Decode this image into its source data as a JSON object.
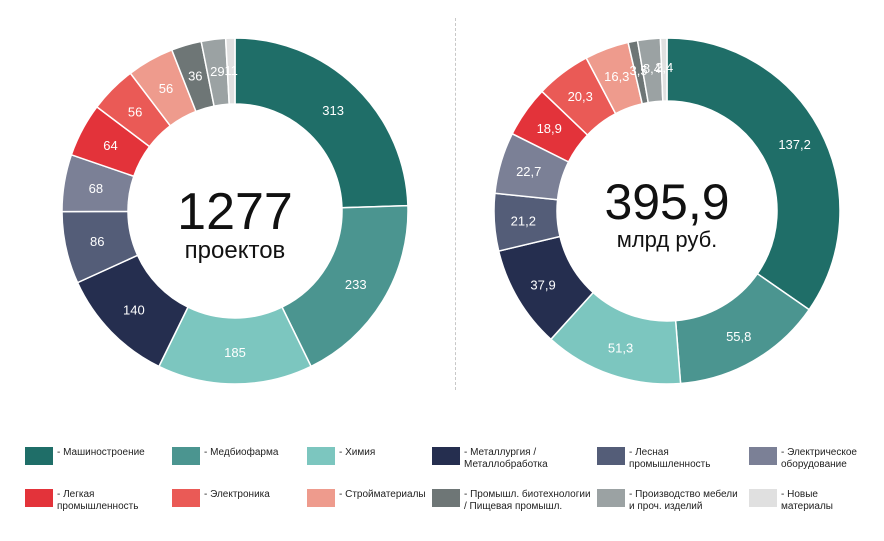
{
  "colors": {
    "Машиностроение": "#1f6e68",
    "Медбиофарма": "#4b9590",
    "Химия": "#7cc6bf",
    "Металлургия": "#252e4f",
    "Лесная": "#545d78",
    "Электрическое": "#7b8096",
    "Легкая": "#e3333a",
    "Электроника": "#ea5a56",
    "Стройматериалы": "#ee9b8d",
    "Биотех": "#6e7676",
    "Мебель": "#9ba2a3",
    "Новые": "#e0e0e0"
  },
  "chart_data": [
    {
      "type": "pie",
      "variant": "donut",
      "center_value": "1277",
      "center_label": "проектов",
      "slices": [
        {
          "key": "Машиностроение",
          "value": 313,
          "label": "313"
        },
        {
          "key": "Медбиофарма",
          "value": 233,
          "label": "233"
        },
        {
          "key": "Химия",
          "value": 185,
          "label": "185"
        },
        {
          "key": "Металлургия",
          "value": 140,
          "label": "140"
        },
        {
          "key": "Лесная",
          "value": 86,
          "label": "86"
        },
        {
          "key": "Электрическое",
          "value": 68,
          "label": "68"
        },
        {
          "key": "Легкая",
          "value": 64,
          "label": "64"
        },
        {
          "key": "Электроника",
          "value": 56,
          "label": "56"
        },
        {
          "key": "Стройматериалы",
          "value": 56,
          "label": "56"
        },
        {
          "key": "Биотех",
          "value": 36,
          "label": "36"
        },
        {
          "key": "Мебель",
          "value": 29,
          "label": "29"
        },
        {
          "key": "Новые",
          "value": 11,
          "label": "11"
        }
      ]
    },
    {
      "type": "pie",
      "variant": "donut",
      "center_value": "395,9",
      "center_label": "млрд руб.",
      "slices": [
        {
          "key": "Машиностроение",
          "value": 137.2,
          "label": "137,2"
        },
        {
          "key": "Медбиофарма",
          "value": 55.8,
          "label": "55,8"
        },
        {
          "key": "Химия",
          "value": 51.3,
          "label": "51,3"
        },
        {
          "key": "Металлургия",
          "value": 37.9,
          "label": "37,9"
        },
        {
          "key": "Лесная",
          "value": 21.2,
          "label": "21,2"
        },
        {
          "key": "Электрическое",
          "value": 22.7,
          "label": "22,7"
        },
        {
          "key": "Легкая",
          "value": 18.9,
          "label": "18,9"
        },
        {
          "key": "Электроника",
          "value": 20.3,
          "label": "20,3"
        },
        {
          "key": "Стройматериалы",
          "value": 16.3,
          "label": "16,3"
        },
        {
          "key": "Биотех",
          "value": 3.5,
          "label": "3,5"
        },
        {
          "key": "Мебель",
          "value": 8.4,
          "label": "8,4"
        },
        {
          "key": "Новые",
          "value": 2.4,
          "label": "2,4"
        }
      ]
    }
  ],
  "legend": [
    {
      "key": "Машиностроение",
      "label": "- Машиностроение"
    },
    {
      "key": "Медбиофарма",
      "label": "- Медбиофарма"
    },
    {
      "key": "Химия",
      "label": "- Химия"
    },
    {
      "key": "Металлургия",
      "label": "- Металлургия /\nМеталлобработка"
    },
    {
      "key": "Лесная",
      "label": "- Лесная\nпромышленность"
    },
    {
      "key": "Электрическое",
      "label": "- Электрическое\nоборудование"
    },
    {
      "key": "Легкая",
      "label": "- Легкая\nпромышленность"
    },
    {
      "key": "Электроника",
      "label": "- Электроника"
    },
    {
      "key": "Стройматериалы",
      "label": "- Стройматериалы"
    },
    {
      "key": "Биотех",
      "label": "- Промышл. биотехнологии\n/ Пищевая промышл."
    },
    {
      "key": "Мебель",
      "label": "- Производство мебели\nи проч. изделий"
    },
    {
      "key": "Новые",
      "label": "- Новые\nматериалы"
    }
  ]
}
